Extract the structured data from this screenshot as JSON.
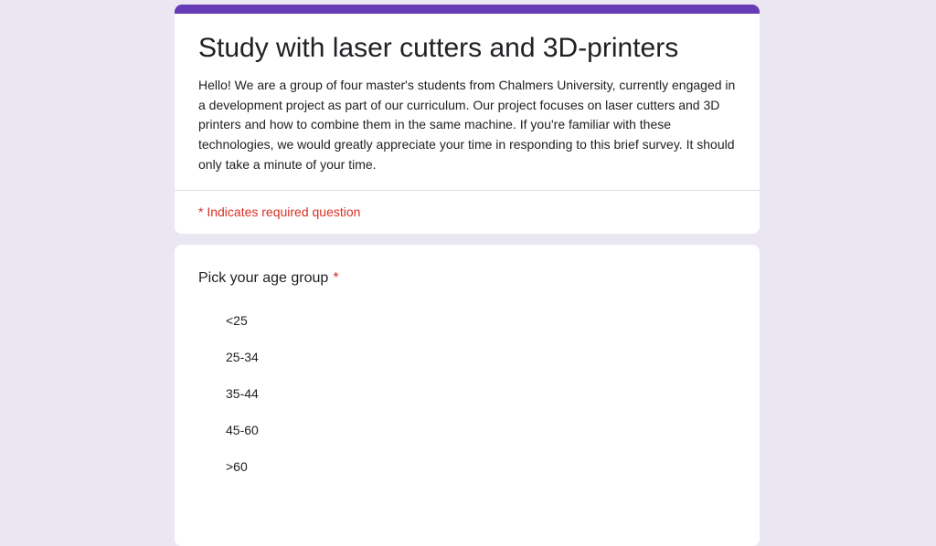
{
  "theme": {
    "accent_color": "#673ab7",
    "background_color": "#eae7f3",
    "card_color": "#ffffff",
    "text_color": "#202124",
    "required_color": "#d93025",
    "divider_color": "#dadce0"
  },
  "header": {
    "title": "Study with laser cutters and 3D-printers",
    "description": "Hello! We are a group of four master's students from Chalmers University, currently engaged in a development project as part of our curriculum. Our project focuses on laser cutters and 3D printers and how to combine them in the same machine. If you're familiar with these technologies, we would greatly appreciate your time in responding to this brief survey. It should only take a minute of your time.",
    "required_note": "* Indicates required question"
  },
  "question": {
    "label": "Pick your age group",
    "required_marker": "*",
    "type": "radio",
    "options": [
      {
        "label": "<25"
      },
      {
        "label": "25-34"
      },
      {
        "label": "35-44"
      },
      {
        "label": "45-60"
      },
      {
        "label": ">60"
      }
    ]
  }
}
